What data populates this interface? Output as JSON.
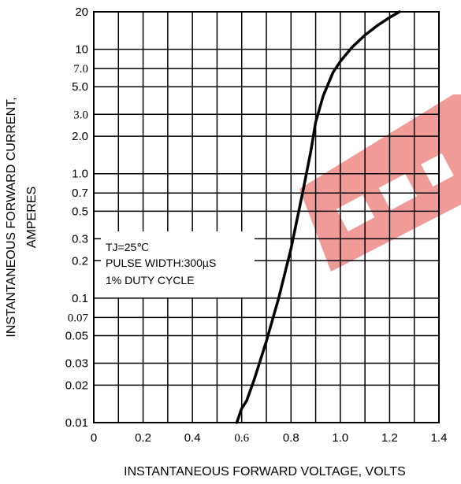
{
  "chart_data": {
    "type": "line",
    "title": "",
    "xlabel": "INSTANTANEOUS FORWARD VOLTAGE, VOLTS",
    "ylabel_line1": "INSTANTANEOUS FORWARD CURRENT,",
    "ylabel_line2": "AMPERES",
    "x_scale": "linear",
    "y_scale": "log",
    "xlim": [
      0,
      1.4
    ],
    "ylim": [
      0.01,
      20
    ],
    "grid": true,
    "x_ticks": [
      {
        "value": 0,
        "label": "0",
        "font": "sans"
      },
      {
        "value": 0.2,
        "label": "0.2",
        "font": "sans"
      },
      {
        "value": 0.4,
        "label": "0.4",
        "font": "sans"
      },
      {
        "value": 0.6,
        "label": "0.6",
        "font": "serif"
      },
      {
        "value": 0.8,
        "label": "0.8",
        "font": "sans"
      },
      {
        "value": 1.0,
        "label": "1.0",
        "font": "sans"
      },
      {
        "value": 1.2,
        "label": "1.2",
        "font": "sans"
      },
      {
        "value": 1.4,
        "label": "1.4",
        "font": "sans"
      }
    ],
    "y_ticks": [
      {
        "value": 20,
        "label": "20",
        "font": "sans"
      },
      {
        "value": 10,
        "label": "10",
        "font": "sans"
      },
      {
        "value": 7.0,
        "label": "7.0",
        "font": "serif"
      },
      {
        "value": 5.0,
        "label": "5.0",
        "font": "sans"
      },
      {
        "value": 3.0,
        "label": "3.0",
        "font": "serif"
      },
      {
        "value": 2.0,
        "label": "2.0",
        "font": "sans"
      },
      {
        "value": 1.0,
        "label": "1.0",
        "font": "sans"
      },
      {
        "value": 0.7,
        "label": "0.7",
        "font": "sans"
      },
      {
        "value": 0.5,
        "label": "0.5",
        "font": "sans"
      },
      {
        "value": 0.3,
        "label": "0.3",
        "font": "sans"
      },
      {
        "value": 0.2,
        "label": "0.2",
        "font": "sans"
      },
      {
        "value": 0.1,
        "label": "0.1",
        "font": "sans"
      },
      {
        "value": 0.07,
        "label": "0.07",
        "font": "serif"
      },
      {
        "value": 0.05,
        "label": "0.05",
        "font": "sans"
      },
      {
        "value": 0.03,
        "label": "0.03",
        "font": "sans"
      },
      {
        "value": 0.02,
        "label": "0.02",
        "font": "sans"
      },
      {
        "value": 0.01,
        "label": "0.01",
        "font": "sans"
      }
    ],
    "series": [
      {
        "x": [
          0.58,
          0.6,
          0.62,
          0.65,
          0.7,
          0.75,
          0.8,
          0.85,
          0.88,
          0.9,
          0.93,
          0.97,
          1.0,
          1.05,
          1.1,
          1.15,
          1.2,
          1.24
        ],
        "y": [
          0.01,
          0.013,
          0.015,
          0.022,
          0.045,
          0.1,
          0.25,
          0.75,
          1.5,
          2.6,
          4.2,
          6.5,
          8.0,
          10.5,
          13.0,
          15.5,
          18.0,
          20.0
        ]
      }
    ],
    "annotation": [
      "TJ=25℃",
      "PULSE WIDTH:300µS",
      "1% DUTY CYCLE"
    ],
    "colors": {
      "line": "#000000",
      "grid": "#000000",
      "watermark": "#e53935"
    }
  }
}
